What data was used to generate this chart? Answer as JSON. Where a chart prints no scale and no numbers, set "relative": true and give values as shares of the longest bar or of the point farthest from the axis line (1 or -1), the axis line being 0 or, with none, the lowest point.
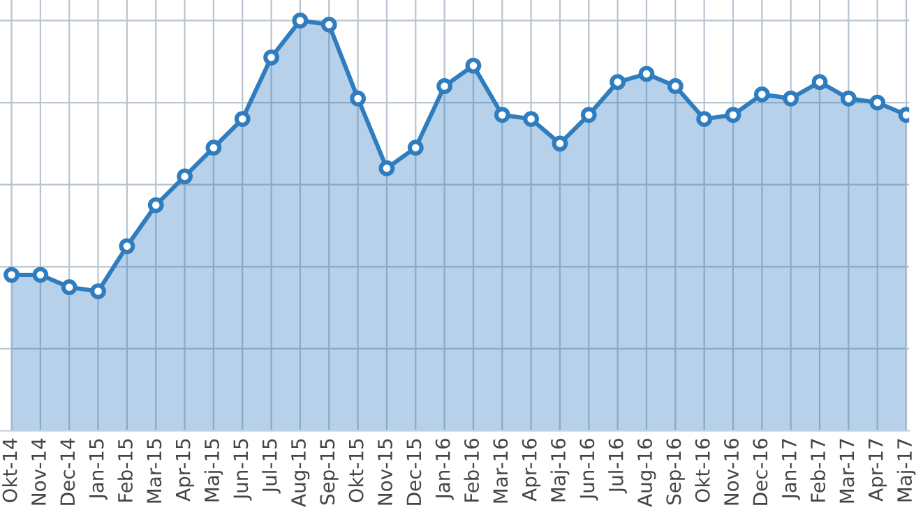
{
  "chart_data": {
    "type": "area",
    "relative": true,
    "categories": [
      "Okt-14",
      "Nov-14",
      "Dec-14",
      "Jan-15",
      "Feb-15",
      "Mar-15",
      "Apr-15",
      "Maj-15",
      "Jun-15",
      "Jul-15",
      "Aug-15",
      "Sep-15",
      "Okt-15",
      "Nov-15",
      "Dec-15",
      "Jan-16",
      "Feb-16",
      "Mar-16",
      "Apr-16",
      "Maj-16",
      "Jun-16",
      "Jul-16",
      "Aug-16",
      "Sep-16",
      "Okt-16",
      "Nov-16",
      "Dec-16",
      "Jan-17",
      "Feb-17",
      "Mar-17",
      "Apr-17",
      "Maj-17"
    ],
    "series": [
      {
        "color": "#2f7cbf",
        "values": [
          0.38,
          0.38,
          0.35,
          0.34,
          0.45,
          0.55,
          0.62,
          0.69,
          0.76,
          0.91,
          1.0,
          0.99,
          0.81,
          0.64,
          0.69,
          0.84,
          0.89,
          0.77,
          0.76,
          0.7,
          0.77,
          0.85,
          0.87,
          0.84,
          0.76,
          0.77,
          0.82,
          0.81,
          0.85,
          0.81,
          0.8,
          0.77
        ]
      }
    ],
    "marker": "circle",
    "grid": true,
    "legend": false
  }
}
